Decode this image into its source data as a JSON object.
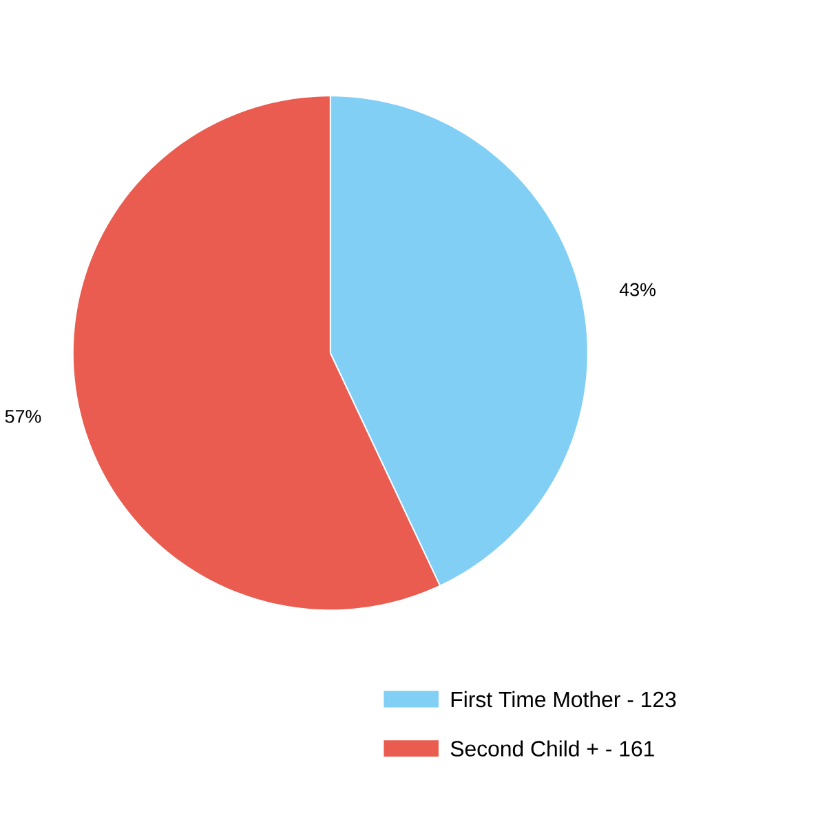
{
  "chart_data": {
    "type": "pie",
    "categories": [
      "First Time Mother - 123",
      "Second Child + - 161"
    ],
    "values": [
      43,
      57
    ],
    "value_labels": [
      "43%",
      "57%"
    ],
    "colors": [
      "#81cff4",
      "#e95c4f"
    ],
    "legend": "bottom right"
  }
}
